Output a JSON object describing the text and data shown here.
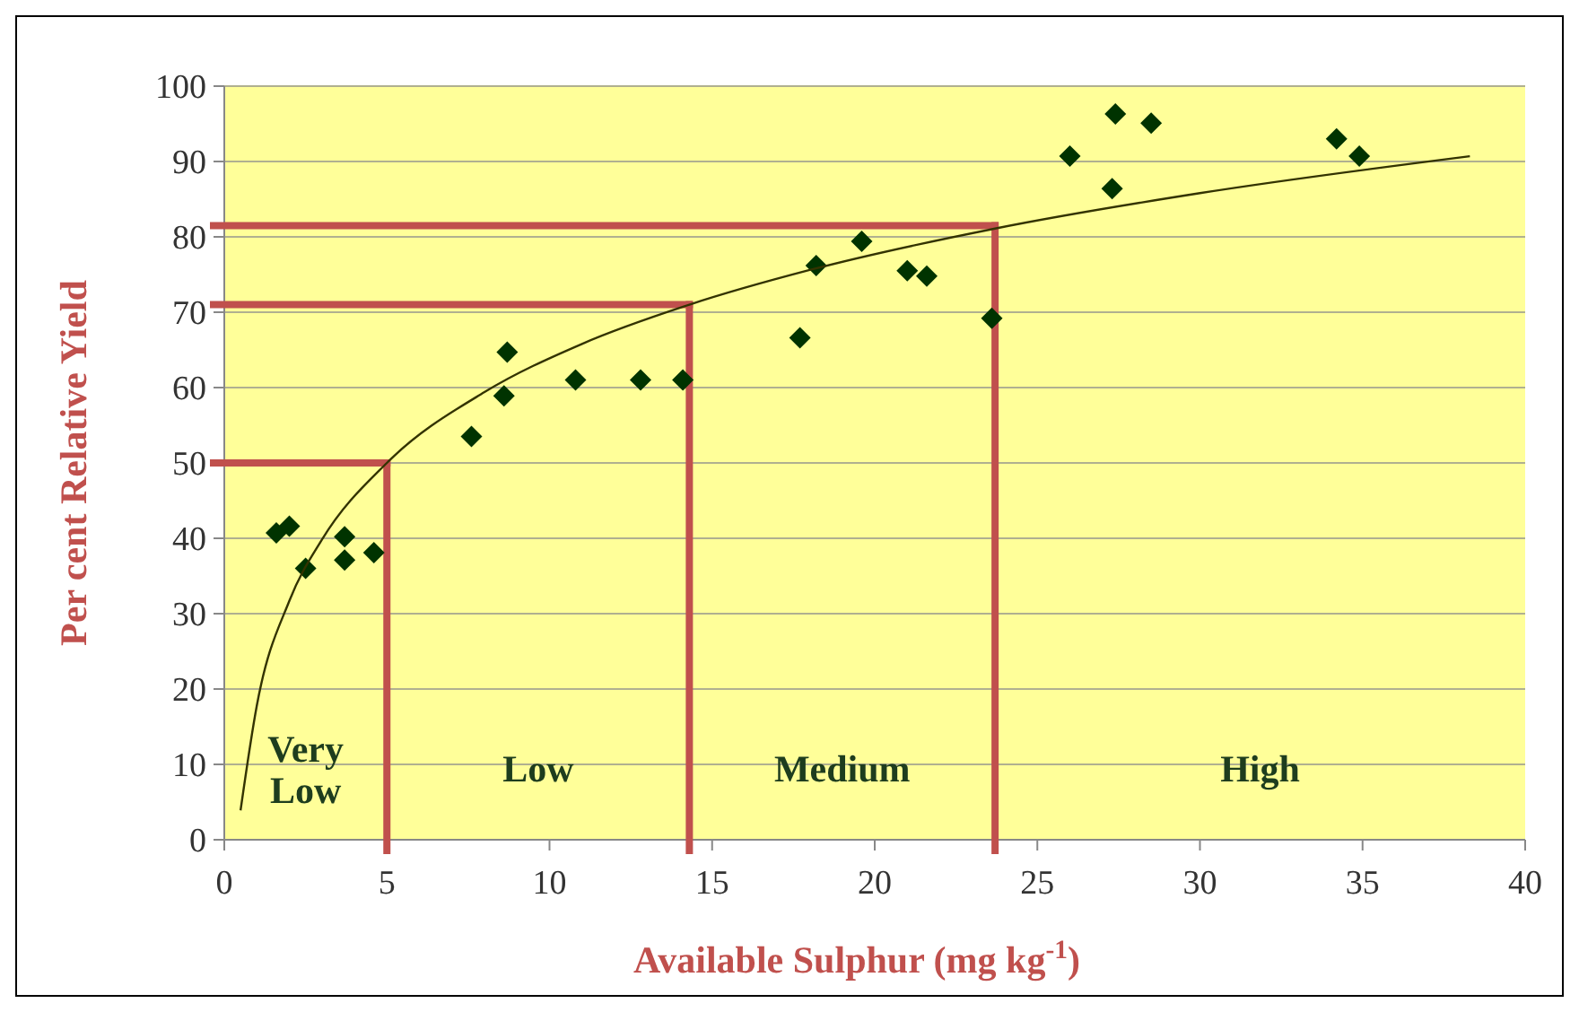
{
  "chart_data": {
    "type": "scatter",
    "xlabel": "Available Sulphur (mg kg$^{-1}$)",
    "ylabel": "Per cent Relative Yield",
    "xlim": [
      0,
      40
    ],
    "xticks": [
      0,
      5,
      10,
      15,
      20,
      25,
      30,
      35,
      40
    ],
    "ylim": [
      0,
      100
    ],
    "yticks": [
      0,
      10,
      20,
      30,
      40,
      50,
      60,
      70,
      80,
      90,
      100
    ],
    "grid": "y",
    "series": [
      {
        "color": "#003300",
        "marker": "diamond",
        "x": [
          1.6,
          2.0,
          2.5,
          3.7,
          3.7,
          4.6,
          7.6,
          8.6,
          8.7,
          10.8,
          12.8,
          14.1,
          17.7,
          18.2,
          19.6,
          21.0,
          21.6,
          23.6,
          26.0,
          27.3,
          27.4,
          28.5,
          34.2,
          34.9
        ],
        "values": [
          40.7,
          41.6,
          36,
          40.2,
          37.1,
          38.1,
          53.5,
          58.9,
          64.7,
          61,
          61,
          61,
          66.6,
          76.2,
          79.4,
          75.5,
          74.8,
          69.2,
          90.7,
          86.4,
          96.3,
          95.1,
          93,
          90.7
        ]
      },
      {
        "type": "line",
        "color": "#333300",
        "x": [
          0.5,
          1,
          2,
          3,
          5,
          8,
          11,
          14.3,
          18,
          23.7,
          30,
          38.3
        ],
        "values": [
          3.9,
          17.8,
          31.7,
          39.8,
          50,
          59.4,
          65.8,
          71,
          75.6,
          81.1,
          85.8,
          90.7
        ]
      }
    ],
    "ref_lines": [
      {
        "axis": "x",
        "value": 5,
        "color": "#c0504d"
      },
      {
        "axis": "x",
        "value": 14.3,
        "color": "#c0504d"
      },
      {
        "axis": "x",
        "value": 23.7,
        "color": "#c0504d"
      },
      {
        "axis": "y",
        "value": 50,
        "color": "#c0504d"
      },
      {
        "axis": "y",
        "value": 71,
        "color": "#c0504d"
      },
      {
        "axis": "y",
        "value": 81.5,
        "color": "#c0504d"
      }
    ],
    "annotations": [
      "Very\nLow",
      "Low",
      "Medium",
      "High"
    ]
  }
}
